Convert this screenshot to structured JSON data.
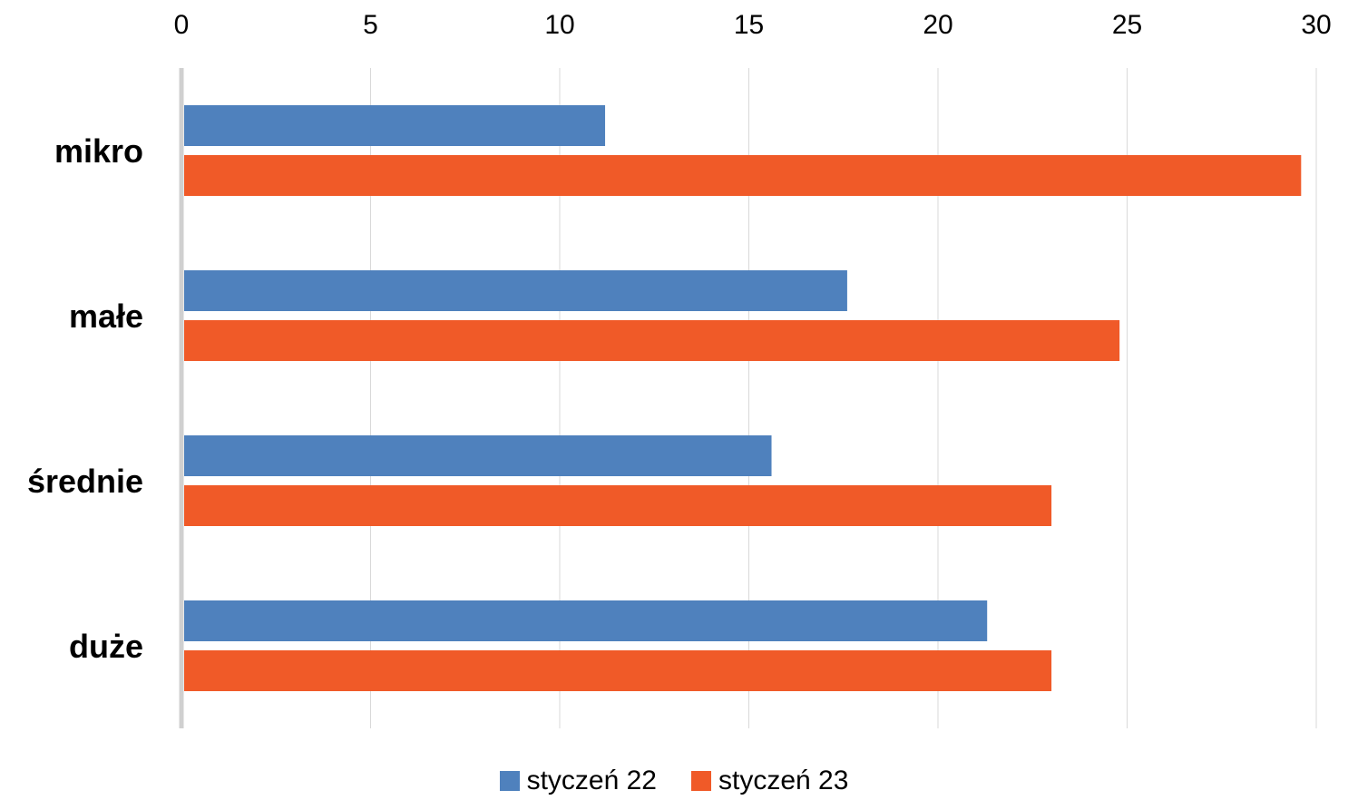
{
  "chart_data": {
    "type": "bar",
    "orientation": "horizontal",
    "categories": [
      "mikro",
      "małe",
      "średnie",
      "duże"
    ],
    "series": [
      {
        "name": "styczeń 22",
        "color": "#4F81BD",
        "values": [
          11.2,
          17.6,
          15.6,
          21.3
        ]
      },
      {
        "name": "styczeń 23",
        "color": "#F05A28",
        "values": [
          29.6,
          24.8,
          23.0,
          23.0
        ]
      }
    ],
    "xlim": [
      0,
      30
    ],
    "xticks": [
      0,
      5,
      10,
      15,
      20,
      25,
      30
    ],
    "xtick_position": "top",
    "grid": true,
    "legend": "bottom",
    "title": "",
    "xlabel": "",
    "ylabel": ""
  }
}
